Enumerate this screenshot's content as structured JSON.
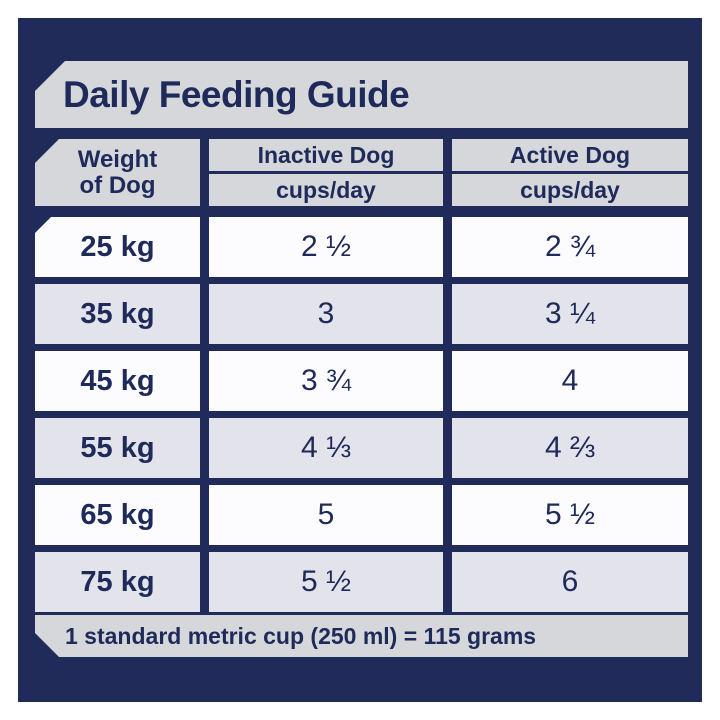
{
  "title": "Daily Feeding Guide",
  "table": {
    "weight_header_line1": "Weight",
    "weight_header_line2": "of Dog",
    "columns": [
      {
        "label": "Inactive Dog",
        "sublabel": "cups/day"
      },
      {
        "label": "Active Dog",
        "sublabel": "cups/day"
      }
    ],
    "rows": [
      {
        "weight": "25 kg",
        "inactive": "2 ½",
        "active": "2 ¾"
      },
      {
        "weight": "35 kg",
        "inactive": "3",
        "active": "3 ¼"
      },
      {
        "weight": "45 kg",
        "inactive": "3 ¾",
        "active": "4"
      },
      {
        "weight": "55 kg",
        "inactive": "4 ⅓",
        "active": "4 ⅔"
      },
      {
        "weight": "65 kg",
        "inactive": "5",
        "active": "5 ½"
      },
      {
        "weight": "75 kg",
        "inactive": "5 ½",
        "active": "6"
      }
    ]
  },
  "footer_note": "1 standard metric cup (250 ml) = 115 grams",
  "colors": {
    "panel_navy": "#212b59",
    "banner_gray": "#d6d7db",
    "row_white": "#fcfcfe",
    "row_gray": "#e3e3eb",
    "text_navy": "#1e2a5a",
    "page_background": "#ffffff"
  },
  "chart_data": {
    "type": "table",
    "title": "Daily Feeding Guide",
    "columns": [
      "Weight of Dog",
      "Inactive Dog (cups/day)",
      "Active Dog (cups/day)"
    ],
    "rows": [
      [
        "25 kg",
        2.5,
        2.75
      ],
      [
        "35 kg",
        3,
        3.25
      ],
      [
        "45 kg",
        3.75,
        4
      ],
      [
        "55 kg",
        4.33,
        4.67
      ],
      [
        "65 kg",
        5,
        5.5
      ],
      [
        "75 kg",
        5.5,
        6
      ]
    ],
    "note": "1 standard metric cup (250 ml) = 115 grams"
  }
}
